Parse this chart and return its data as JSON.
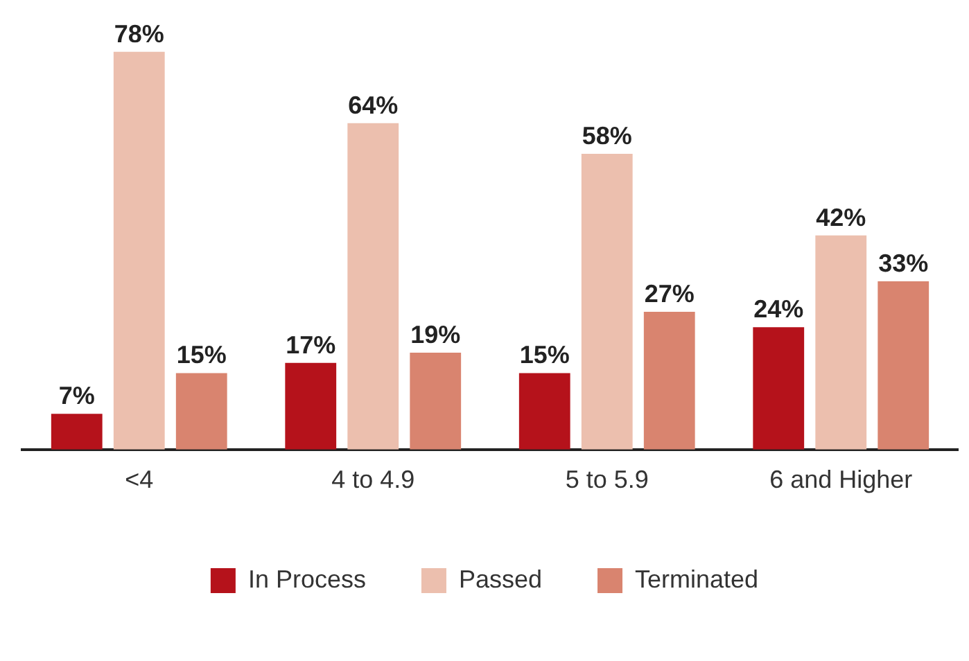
{
  "chart_data": {
    "type": "bar",
    "categories": [
      "<4",
      "4 to 4.9",
      "5 to 5.9",
      "6 and Higher"
    ],
    "series": [
      {
        "name": "In Process",
        "color": "#b5121b",
        "values": [
          7,
          17,
          15,
          24
        ],
        "value_labels": [
          "7%",
          "17%",
          "15%",
          "24%"
        ]
      },
      {
        "name": "Passed",
        "color": "#ecbfae",
        "values": [
          78,
          64,
          58,
          42
        ],
        "value_labels": [
          "78%",
          "64%",
          "58%",
          "42%"
        ]
      },
      {
        "name": "Terminated",
        "color": "#d9846f",
        "values": [
          15,
          19,
          27,
          33
        ],
        "value_labels": [
          "15%",
          "19%",
          "27%",
          "33%"
        ]
      }
    ],
    "tick_labels": "x",
    "grid": false,
    "legend": "bottom"
  }
}
